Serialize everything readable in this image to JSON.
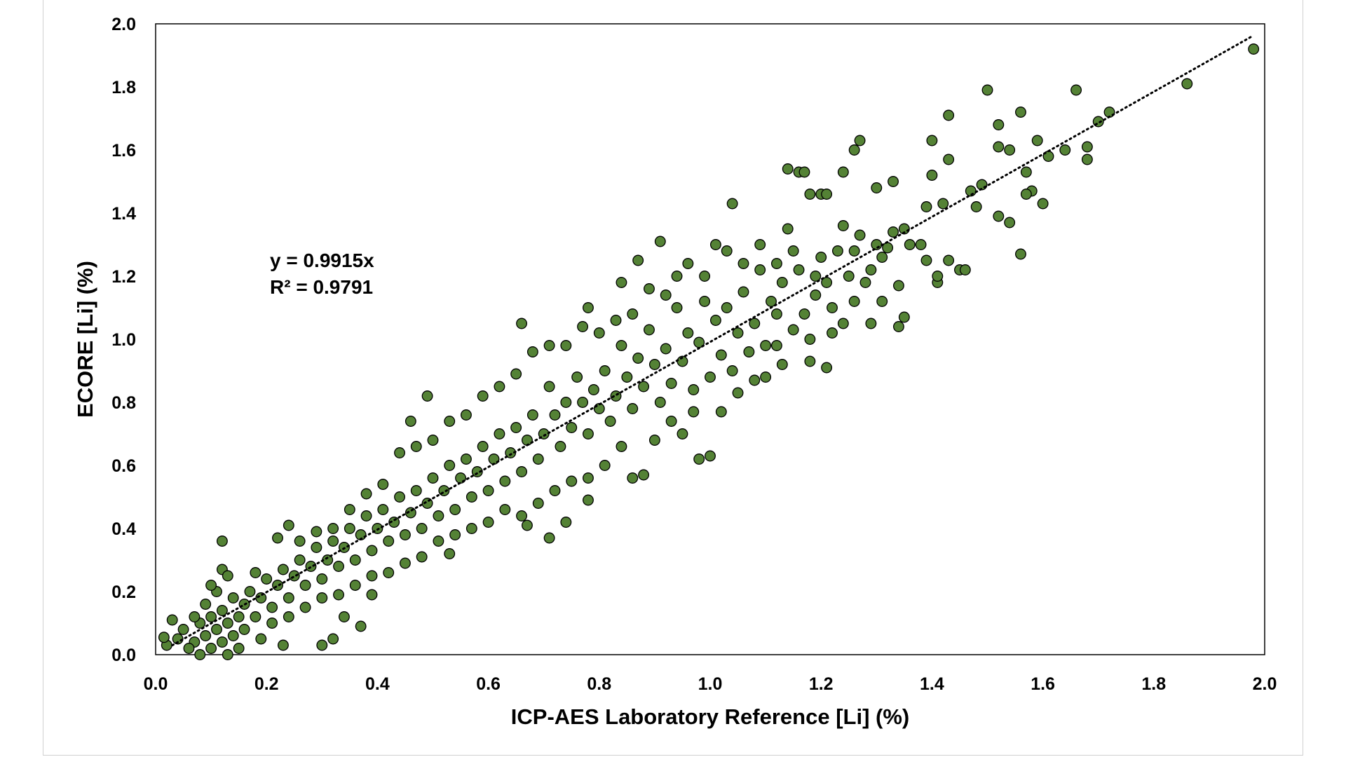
{
  "chart_data": {
    "type": "scatter",
    "title": "",
    "xlabel": "ICP-AES Laboratory Reference [Li] (%)",
    "ylabel": "ECORE [Li] (%)",
    "xlim": [
      0,
      2.0
    ],
    "ylim": [
      0,
      2.0
    ],
    "xticks": [
      "0.0",
      "0.2",
      "0.4",
      "0.6",
      "0.8",
      "1.0",
      "1.2",
      "1.4",
      "1.6",
      "1.8",
      "2.0"
    ],
    "yticks": [
      "0.0",
      "0.2",
      "0.4",
      "0.6",
      "0.8",
      "1.0",
      "1.2",
      "1.4",
      "1.6",
      "1.8",
      "2.0"
    ],
    "grid": false,
    "legend": "none",
    "marker_color": "#548235",
    "marker_edge": "#000000",
    "trendline": {
      "slope": 0.9915,
      "style": "dotted",
      "color": "#000000",
      "equation": "y = 0.9915x",
      "r2": "R² = 0.9791"
    },
    "points": [
      [
        1.98,
        1.92
      ],
      [
        1.86,
        1.81
      ],
      [
        1.5,
        1.79
      ],
      [
        1.66,
        1.79
      ],
      [
        1.56,
        1.72
      ],
      [
        1.43,
        1.71
      ],
      [
        1.72,
        1.72
      ],
      [
        1.7,
        1.69
      ],
      [
        1.52,
        1.68
      ],
      [
        1.27,
        1.63
      ],
      [
        1.4,
        1.63
      ],
      [
        1.59,
        1.63
      ],
      [
        1.26,
        1.6
      ],
      [
        1.52,
        1.61
      ],
      [
        1.54,
        1.6
      ],
      [
        1.64,
        1.6
      ],
      [
        1.68,
        1.61
      ],
      [
        1.68,
        1.57
      ],
      [
        1.61,
        1.58
      ],
      [
        1.43,
        1.57
      ],
      [
        1.14,
        1.54
      ],
      [
        1.16,
        1.53
      ],
      [
        1.17,
        1.53
      ],
      [
        1.24,
        1.53
      ],
      [
        1.4,
        1.52
      ],
      [
        1.57,
        1.53
      ],
      [
        1.33,
        1.5
      ],
      [
        1.3,
        1.48
      ],
      [
        1.47,
        1.47
      ],
      [
        1.49,
        1.49
      ],
      [
        1.58,
        1.47
      ],
      [
        1.57,
        1.46
      ],
      [
        1.6,
        1.43
      ],
      [
        1.04,
        1.43
      ],
      [
        1.18,
        1.46
      ],
      [
        1.2,
        1.46
      ],
      [
        1.21,
        1.46
      ],
      [
        1.39,
        1.42
      ],
      [
        1.42,
        1.43
      ],
      [
        1.48,
        1.42
      ],
      [
        1.52,
        1.39
      ],
      [
        1.54,
        1.37
      ],
      [
        1.56,
        1.27
      ],
      [
        1.34,
        1.04
      ],
      [
        1.35,
        1.07
      ],
      [
        1.29,
        1.05
      ],
      [
        0.91,
        1.31
      ],
      [
        0.87,
        1.25
      ],
      [
        0.84,
        1.18
      ],
      [
        0.66,
        1.05
      ],
      [
        0.78,
        1.1
      ],
      [
        0.49,
        0.82
      ],
      [
        0.46,
        0.74
      ],
      [
        0.98,
        0.62
      ],
      [
        1.0,
        0.63
      ],
      [
        0.88,
        0.57
      ],
      [
        0.86,
        0.56
      ],
      [
        0.78,
        0.49
      ],
      [
        0.74,
        0.42
      ],
      [
        0.71,
        0.37
      ],
      [
        0.67,
        0.41
      ],
      [
        0.12,
        0.36
      ],
      [
        0.22,
        0.37
      ],
      [
        0.24,
        0.41
      ],
      [
        0.39,
        0.19
      ],
      [
        0.37,
        0.09
      ],
      [
        0.34,
        0.12
      ],
      [
        0.32,
        0.05
      ],
      [
        0.3,
        0.03
      ],
      [
        0.23,
        0.03
      ],
      [
        0.53,
        0.32
      ],
      [
        1.21,
        0.91
      ],
      [
        1.18,
        0.93
      ],
      [
        1.13,
        0.92
      ],
      [
        1.45,
        1.22
      ],
      [
        1.41,
        1.18
      ],
      [
        1.41,
        1.2
      ],
      [
        1.39,
        1.25
      ],
      [
        1.43,
        1.25
      ],
      [
        1.46,
        1.22
      ],
      [
        1.36,
        1.3
      ],
      [
        1.32,
        1.29
      ],
      [
        1.34,
        1.17
      ],
      [
        1.31,
        1.12
      ],
      [
        1.29,
        1.22
      ],
      [
        1.27,
        1.33
      ],
      [
        1.26,
        1.28
      ],
      [
        1.25,
        1.2
      ],
      [
        1.24,
        1.36
      ],
      [
        1.22,
        1.1
      ],
      [
        1.21,
        1.18
      ],
      [
        1.2,
        1.26
      ],
      [
        1.19,
        1.14
      ],
      [
        1.17,
        1.08
      ],
      [
        1.16,
        1.22
      ],
      [
        1.15,
        1.03
      ],
      [
        1.14,
        1.35
      ],
      [
        1.13,
        1.18
      ],
      [
        1.12,
        1.08
      ],
      [
        1.11,
        1.12
      ],
      [
        1.1,
        0.98
      ],
      [
        1.09,
        1.22
      ],
      [
        1.08,
        1.05
      ],
      [
        1.07,
        0.96
      ],
      [
        1.06,
        1.15
      ],
      [
        1.05,
        1.02
      ],
      [
        1.04,
        0.9
      ],
      [
        1.03,
        1.1
      ],
      [
        1.02,
        0.95
      ],
      [
        1.01,
        1.06
      ],
      [
        1.0,
        0.88
      ],
      [
        0.99,
        1.12
      ],
      [
        0.98,
        0.99
      ],
      [
        0.97,
        0.84
      ],
      [
        0.96,
        1.02
      ],
      [
        0.95,
        0.93
      ],
      [
        0.94,
        1.1
      ],
      [
        0.93,
        0.86
      ],
      [
        0.92,
        0.97
      ],
      [
        0.91,
        0.8
      ],
      [
        0.9,
        0.92
      ],
      [
        0.89,
        1.03
      ],
      [
        0.88,
        0.85
      ],
      [
        0.87,
        0.94
      ],
      [
        0.86,
        0.78
      ],
      [
        0.85,
        0.88
      ],
      [
        0.84,
        0.98
      ],
      [
        0.83,
        0.82
      ],
      [
        0.82,
        0.74
      ],
      [
        0.81,
        0.9
      ],
      [
        0.8,
        0.78
      ],
      [
        0.79,
        0.84
      ],
      [
        0.78,
        0.7
      ],
      [
        0.77,
        0.8
      ],
      [
        0.76,
        0.88
      ],
      [
        0.75,
        0.72
      ],
      [
        0.74,
        0.8
      ],
      [
        0.73,
        0.66
      ],
      [
        0.72,
        0.76
      ],
      [
        0.71,
        0.85
      ],
      [
        0.7,
        0.7
      ],
      [
        0.69,
        0.62
      ],
      [
        0.68,
        0.76
      ],
      [
        0.67,
        0.68
      ],
      [
        0.66,
        0.58
      ],
      [
        0.65,
        0.72
      ],
      [
        0.64,
        0.64
      ],
      [
        0.63,
        0.55
      ],
      [
        0.62,
        0.7
      ],
      [
        0.61,
        0.62
      ],
      [
        0.6,
        0.52
      ],
      [
        0.59,
        0.66
      ],
      [
        0.58,
        0.58
      ],
      [
        0.57,
        0.5
      ],
      [
        0.56,
        0.62
      ],
      [
        0.55,
        0.56
      ],
      [
        0.54,
        0.46
      ],
      [
        0.53,
        0.6
      ],
      [
        0.52,
        0.52
      ],
      [
        0.51,
        0.44
      ],
      [
        0.5,
        0.56
      ],
      [
        0.49,
        0.48
      ],
      [
        0.48,
        0.4
      ],
      [
        0.47,
        0.52
      ],
      [
        0.46,
        0.45
      ],
      [
        0.45,
        0.38
      ],
      [
        0.44,
        0.5
      ],
      [
        0.43,
        0.42
      ],
      [
        0.42,
        0.36
      ],
      [
        0.41,
        0.46
      ],
      [
        0.4,
        0.4
      ],
      [
        0.39,
        0.33
      ],
      [
        0.38,
        0.44
      ],
      [
        0.37,
        0.38
      ],
      [
        0.36,
        0.3
      ],
      [
        0.35,
        0.4
      ],
      [
        0.34,
        0.34
      ],
      [
        0.33,
        0.28
      ],
      [
        0.32,
        0.36
      ],
      [
        0.31,
        0.3
      ],
      [
        0.3,
        0.24
      ],
      [
        0.29,
        0.34
      ],
      [
        0.28,
        0.28
      ],
      [
        0.27,
        0.22
      ],
      [
        0.26,
        0.3
      ],
      [
        0.25,
        0.25
      ],
      [
        0.24,
        0.18
      ],
      [
        0.23,
        0.27
      ],
      [
        0.22,
        0.22
      ],
      [
        0.21,
        0.15
      ],
      [
        0.2,
        0.24
      ],
      [
        0.19,
        0.18
      ],
      [
        0.18,
        0.12
      ],
      [
        0.18,
        0.26
      ],
      [
        0.17,
        0.2
      ],
      [
        0.16,
        0.08
      ],
      [
        0.16,
        0.16
      ],
      [
        0.15,
        0.12
      ],
      [
        0.15,
        0.02
      ],
      [
        0.14,
        0.18
      ],
      [
        0.14,
        0.06
      ],
      [
        0.13,
        0.1
      ],
      [
        0.13,
        0.0
      ],
      [
        0.12,
        0.14
      ],
      [
        0.12,
        0.04
      ],
      [
        0.11,
        0.08
      ],
      [
        0.11,
        0.2
      ],
      [
        0.1,
        0.02
      ],
      [
        0.1,
        0.12
      ],
      [
        0.09,
        0.06
      ],
      [
        0.09,
        0.16
      ],
      [
        0.08,
        0.0
      ],
      [
        0.08,
        0.1
      ],
      [
        0.07,
        0.04
      ],
      [
        0.07,
        0.12
      ],
      [
        0.06,
        0.02
      ],
      [
        0.05,
        0.08
      ],
      [
        0.04,
        0.05
      ],
      [
        0.03,
        0.11
      ],
      [
        0.02,
        0.03
      ],
      [
        0.015,
        0.055
      ],
      [
        0.12,
        0.27
      ],
      [
        0.13,
        0.25
      ],
      [
        0.1,
        0.22
      ],
      [
        0.95,
        0.7
      ],
      [
        0.93,
        0.74
      ],
      [
        0.9,
        0.68
      ],
      [
        0.97,
        0.77
      ],
      [
        1.02,
        0.77
      ],
      [
        1.05,
        0.83
      ],
      [
        1.08,
        0.87
      ],
      [
        1.1,
        0.88
      ],
      [
        1.12,
        0.98
      ],
      [
        1.18,
        1.0
      ],
      [
        1.22,
        1.02
      ],
      [
        1.24,
        1.05
      ],
      [
        1.26,
        1.12
      ],
      [
        1.28,
        1.18
      ],
      [
        1.3,
        1.3
      ],
      [
        1.33,
        1.34
      ],
      [
        1.35,
        1.35
      ],
      [
        1.38,
        1.3
      ],
      [
        1.31,
        1.26
      ],
      [
        1.23,
        1.28
      ],
      [
        1.19,
        1.2
      ],
      [
        1.15,
        1.28
      ],
      [
        1.12,
        1.24
      ],
      [
        1.09,
        1.3
      ],
      [
        1.06,
        1.24
      ],
      [
        1.03,
        1.28
      ],
      [
        1.01,
        1.3
      ],
      [
        0.99,
        1.2
      ],
      [
        0.96,
        1.24
      ],
      [
        0.94,
        1.2
      ],
      [
        0.92,
        1.14
      ],
      [
        0.89,
        1.16
      ],
      [
        0.86,
        1.08
      ],
      [
        0.83,
        1.06
      ],
      [
        0.8,
        1.02
      ],
      [
        0.77,
        1.04
      ],
      [
        0.74,
        0.98
      ],
      [
        0.71,
        0.98
      ],
      [
        0.68,
        0.96
      ],
      [
        0.65,
        0.89
      ],
      [
        0.62,
        0.85
      ],
      [
        0.59,
        0.82
      ],
      [
        0.56,
        0.76
      ],
      [
        0.53,
        0.74
      ],
      [
        0.5,
        0.68
      ],
      [
        0.47,
        0.66
      ],
      [
        0.44,
        0.64
      ],
      [
        0.41,
        0.54
      ],
      [
        0.38,
        0.51
      ],
      [
        0.35,
        0.46
      ],
      [
        0.32,
        0.4
      ],
      [
        0.29,
        0.39
      ],
      [
        0.26,
        0.36
      ],
      [
        0.84,
        0.66
      ],
      [
        0.81,
        0.6
      ],
      [
        0.78,
        0.56
      ],
      [
        0.75,
        0.55
      ],
      [
        0.72,
        0.52
      ],
      [
        0.69,
        0.48
      ],
      [
        0.66,
        0.44
      ],
      [
        0.63,
        0.46
      ],
      [
        0.6,
        0.42
      ],
      [
        0.57,
        0.4
      ],
      [
        0.54,
        0.38
      ],
      [
        0.51,
        0.36
      ],
      [
        0.48,
        0.31
      ],
      [
        0.45,
        0.29
      ],
      [
        0.42,
        0.26
      ],
      [
        0.39,
        0.25
      ],
      [
        0.36,
        0.22
      ],
      [
        0.33,
        0.19
      ],
      [
        0.3,
        0.18
      ],
      [
        0.27,
        0.15
      ],
      [
        0.24,
        0.12
      ],
      [
        0.21,
        0.1
      ],
      [
        0.19,
        0.05
      ]
    ]
  }
}
